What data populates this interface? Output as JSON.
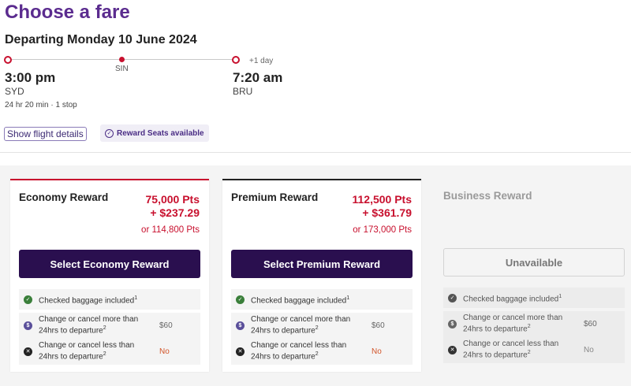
{
  "page": {
    "title": "Choose a fare",
    "departing": "Departing Monday 10 June 2024"
  },
  "flight": {
    "depart_time": "3:00 pm",
    "depart_code": "SYD",
    "stop_code": "SIN",
    "arrive_time": "7:20 am",
    "arrive_code": "BRU",
    "plus_day": "+1 day",
    "duration": "24 hr 20 min · 1 stop",
    "details_link": "Show flight details",
    "reward_badge": "Reward Seats available"
  },
  "fares": {
    "economy": {
      "title": "Economy Reward",
      "points": "75,000 Pts",
      "cash": "+ $237.29",
      "alt": "or 114,800 Pts",
      "button": "Select Economy Reward",
      "feat1": "Checked baggage included",
      "feat2": "Change or cancel more than 24hrs to departure",
      "feat2_val": "$60",
      "feat3": "Change or cancel less than 24hrs to departure",
      "feat3_val": "No"
    },
    "premium": {
      "title": "Premium Reward",
      "points": "112,500 Pts",
      "cash": "+ $361.79",
      "alt": "or 173,000 Pts",
      "button": "Select Premium Reward",
      "feat1": "Checked baggage included",
      "feat2": "Change or cancel more than 24hrs to departure",
      "feat2_val": "$60",
      "feat3": "Change or cancel less than 24hrs to departure",
      "feat3_val": "No"
    },
    "business": {
      "title": "Business Reward",
      "button": "Unavailable",
      "feat1": "Checked baggage included",
      "feat2": "Change or cancel more than 24hrs to departure",
      "feat2_val": "$60",
      "feat3": "Change or cancel less than 24hrs to departure",
      "feat3_val": "No"
    }
  },
  "footnotes": {
    "one": "1",
    "two": "2"
  },
  "icons": {
    "check": "check-circle-icon",
    "dollar": "dollar-circle-icon",
    "cross": "cross-circle-icon",
    "reward": "reward-seat-icon"
  },
  "colors": {
    "brand_purple": "#5b2c8f",
    "button_dark": "#2a0f4f",
    "accent_red": "#c8102e"
  }
}
